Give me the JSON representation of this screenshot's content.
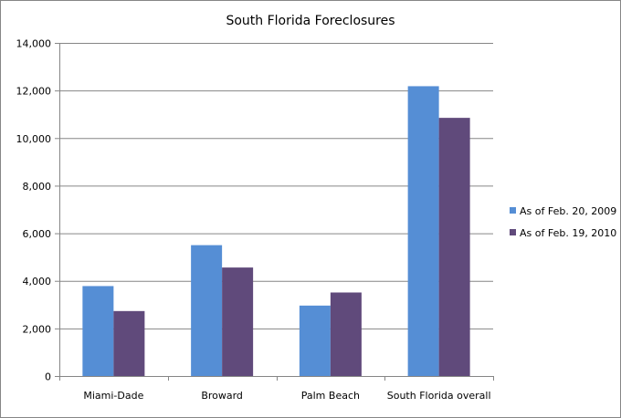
{
  "chart_data": {
    "type": "bar",
    "title": "South Florida Foreclosures",
    "xlabel": "",
    "ylabel": "",
    "ylim": [
      0,
      14000
    ],
    "yticks": [
      0,
      2000,
      4000,
      6000,
      8000,
      10000,
      12000,
      14000
    ],
    "ytick_labels": [
      "0",
      "2,000",
      "4,000",
      "6,000",
      "8,000",
      "10,000",
      "12,000",
      "14,000"
    ],
    "grid": true,
    "legend_position": "right",
    "categories": [
      "Miami-Dade",
      "Broward",
      "Palm Beach",
      "South Florida overall"
    ],
    "series": [
      {
        "name": "As of Feb. 20, 2009",
        "color": "#558ED5",
        "values": [
          3780,
          5500,
          2960,
          12180
        ]
      },
      {
        "name": "As of Feb. 19, 2010",
        "color": "#604A7B",
        "values": [
          2730,
          4560,
          3510,
          10850
        ]
      }
    ]
  }
}
